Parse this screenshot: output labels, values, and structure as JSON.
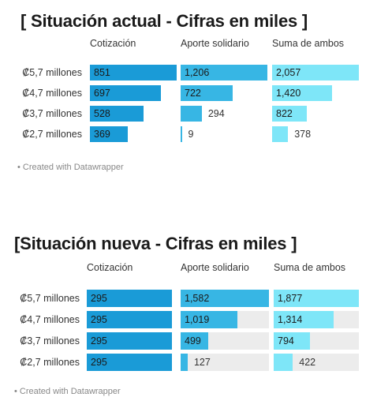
{
  "chart_data": [
    {
      "type": "bar",
      "title": "[ Situación actual - Cifras en miles ]",
      "categories": [
        "₡5,7 millones",
        "₡4,7 millones",
        "₡3,7 millones",
        "₡2,7 millones"
      ],
      "series": [
        {
          "name": "Cotización",
          "values": [
            851,
            697,
            528,
            369
          ],
          "color": "#1a9bd7"
        },
        {
          "name": "Aporte solidario",
          "values": [
            1206,
            722,
            294,
            9
          ],
          "color": "#37b6e4"
        },
        {
          "name": "Suma de ambos",
          "values": [
            2057,
            1420,
            822,
            378
          ],
          "color": "#7ee6f8"
        }
      ],
      "value_labels": [
        [
          "851",
          "697",
          "528",
          "369"
        ],
        [
          "1,206",
          "722",
          "294",
          "9"
        ],
        [
          "2,057",
          "1,420",
          "822",
          "378"
        ]
      ],
      "credit": "• Created with Datawrapper",
      "background_track": false
    },
    {
      "type": "bar",
      "title": "[Situación nueva - Cifras en miles ]",
      "categories": [
        "₡5,7 millones",
        "₡4,7 millones",
        "₡3,7 millones",
        "₡2,7 millones"
      ],
      "series": [
        {
          "name": "Cotización",
          "values": [
            295,
            295,
            295,
            295
          ],
          "color": "#1a9bd7"
        },
        {
          "name": "Aporte solidario",
          "values": [
            1582,
            1019,
            499,
            127
          ],
          "color": "#37b6e4"
        },
        {
          "name": "Suma de ambos",
          "values": [
            1877,
            1314,
            794,
            422
          ],
          "color": "#7ee6f8"
        }
      ],
      "value_labels": [
        [
          "295",
          "295",
          "295",
          "295"
        ],
        [
          "1,582",
          "1,019",
          "499",
          "127"
        ],
        [
          "1,877",
          "1,314",
          "794",
          "422"
        ]
      ],
      "credit": "• Created with Datawrapper",
      "background_track": true
    }
  ]
}
